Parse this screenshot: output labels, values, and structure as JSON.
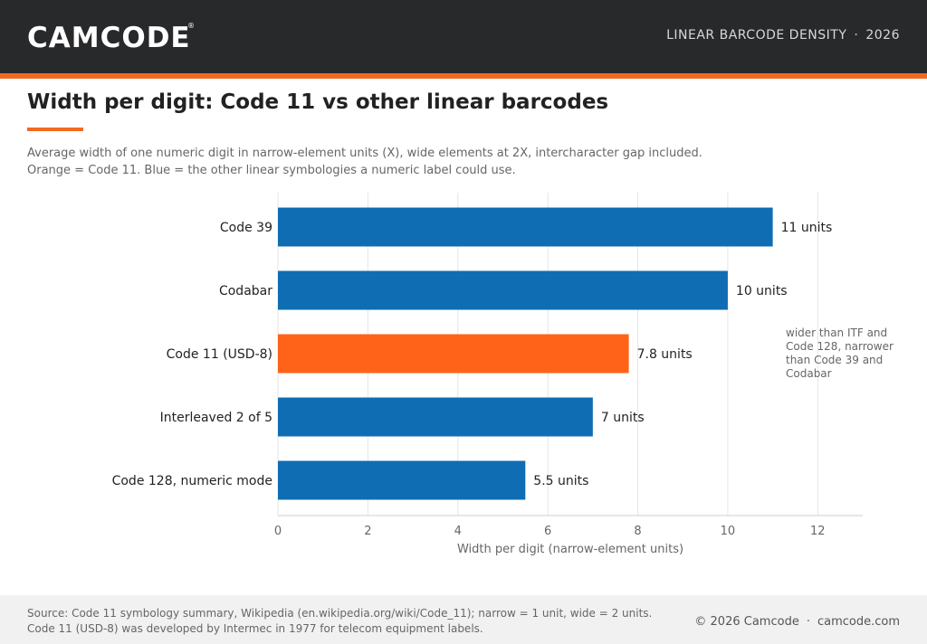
{
  "header": {
    "logo_text": "CAMCODE",
    "logo_mark": "®",
    "section_label": "LINEAR BARCODE DENSITY",
    "separator": "·",
    "year": "2026"
  },
  "colors": {
    "header_bg": "#28292b",
    "accent_orange": "#f26a21",
    "bar_blue": "#0f6db3",
    "bar_orange": "#ff6319",
    "footer_bg": "#f1f1f2"
  },
  "chart_data": {
    "type": "bar",
    "orientation": "horizontal",
    "title": "Width per digit: Code 11 vs other linear barcodes",
    "subtitle_lines": [
      "Average width of one numeric digit in narrow-element units (X), wide elements at 2X, intercharacter gap included.",
      "Orange = Code 11. Blue = the other linear symbologies a numeric label could use."
    ],
    "categories": [
      "Code 39",
      "Codabar",
      "Code 11 (USD-8)",
      "Interleaved 2 of 5",
      "Code 128, numeric mode"
    ],
    "values": [
      11,
      10,
      7.8,
      7,
      5.5
    ],
    "value_labels": [
      "11 units",
      "10 units",
      "7.8 units",
      "7 units",
      "5.5 units"
    ],
    "highlight_index": 2,
    "xlabel": "Width per digit (narrow-element units)",
    "ylabel": "",
    "xlim": [
      0,
      13
    ],
    "xticks": [
      0,
      2,
      4,
      6,
      8,
      10,
      12
    ],
    "grid": true,
    "annotation": {
      "lines": [
        "wider than ITF and",
        "Code 128, narrower",
        "than Code 39 and",
        "Codabar"
      ],
      "placement": "right of plot, beside Code 11 bar"
    }
  },
  "footer": {
    "source_lines": [
      "Source: Code 11 symbology summary, Wikipedia (en.wikipedia.org/wiki/Code_11); narrow = 1 unit, wide = 2 units.",
      "Code 11 (USD-8) was developed by Intermec in 1977 for telecom equipment labels."
    ],
    "copyright": "© 2026 Camcode",
    "separator": "·",
    "site": "camcode.com"
  }
}
